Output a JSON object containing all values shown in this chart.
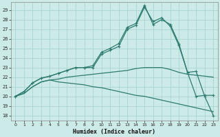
{
  "xlabel": "Humidex (Indice chaleur)",
  "background_color": "#cceae7",
  "grid_color": "#aad4d0",
  "line_color": "#2d7a6e",
  "xlim": [
    -0.5,
    23.5
  ],
  "ylim": [
    17.5,
    29.8
  ],
  "yticks": [
    18,
    19,
    20,
    21,
    22,
    23,
    24,
    25,
    26,
    27,
    28,
    29
  ],
  "xticks": [
    0,
    1,
    2,
    3,
    4,
    5,
    6,
    7,
    8,
    9,
    10,
    11,
    12,
    13,
    14,
    15,
    16,
    17,
    18,
    19,
    20,
    21,
    22,
    23
  ],
  "line1_x": [
    0,
    1,
    2,
    3,
    4,
    5,
    6,
    7,
    8,
    9,
    10,
    11,
    12,
    13,
    14,
    15,
    16,
    17,
    18,
    19,
    20,
    21,
    22,
    23
  ],
  "line1_y": [
    20.0,
    20.5,
    21.4,
    21.9,
    22.1,
    22.4,
    22.7,
    23.0,
    23.0,
    23.2,
    24.6,
    25.0,
    25.5,
    27.2,
    27.6,
    29.5,
    27.5,
    28.0,
    27.5,
    25.5,
    22.5,
    20.0,
    20.1,
    20.1
  ],
  "line2_x": [
    0,
    1,
    2,
    3,
    4,
    5,
    6,
    7,
    8,
    9,
    10,
    11,
    12,
    13,
    14,
    15,
    16,
    17,
    18,
    19,
    20,
    21,
    22,
    23
  ],
  "line2_y": [
    20.0,
    20.5,
    21.4,
    21.9,
    22.1,
    22.4,
    22.7,
    23.0,
    23.0,
    23.0,
    24.4,
    24.8,
    25.2,
    27.0,
    27.4,
    29.3,
    27.8,
    28.2,
    27.3,
    25.3,
    22.5,
    22.6,
    20.0,
    18.0
  ],
  "line3_x": [
    0,
    1,
    2,
    3,
    4,
    5,
    6,
    7,
    8,
    9,
    10,
    11,
    12,
    13,
    14,
    15,
    16,
    17,
    18,
    19,
    20,
    21,
    22,
    23
  ],
  "line3_y": [
    20.0,
    20.3,
    21.0,
    21.5,
    21.7,
    21.8,
    22.0,
    22.1,
    22.2,
    22.3,
    22.4,
    22.5,
    22.6,
    22.7,
    22.9,
    23.0,
    23.0,
    23.0,
    22.8,
    22.5,
    22.3,
    22.2,
    22.1,
    22.0
  ],
  "line4_x": [
    0,
    1,
    2,
    3,
    4,
    5,
    6,
    7,
    8,
    9,
    10,
    11,
    12,
    13,
    14,
    15,
    16,
    17,
    18,
    19,
    20,
    21,
    22,
    23
  ],
  "line4_y": [
    20.0,
    20.3,
    21.0,
    21.5,
    21.7,
    21.5,
    21.4,
    21.3,
    21.2,
    21.0,
    20.9,
    20.7,
    20.5,
    20.3,
    20.1,
    20.0,
    19.8,
    19.6,
    19.4,
    19.2,
    19.0,
    18.8,
    18.6,
    18.4
  ]
}
